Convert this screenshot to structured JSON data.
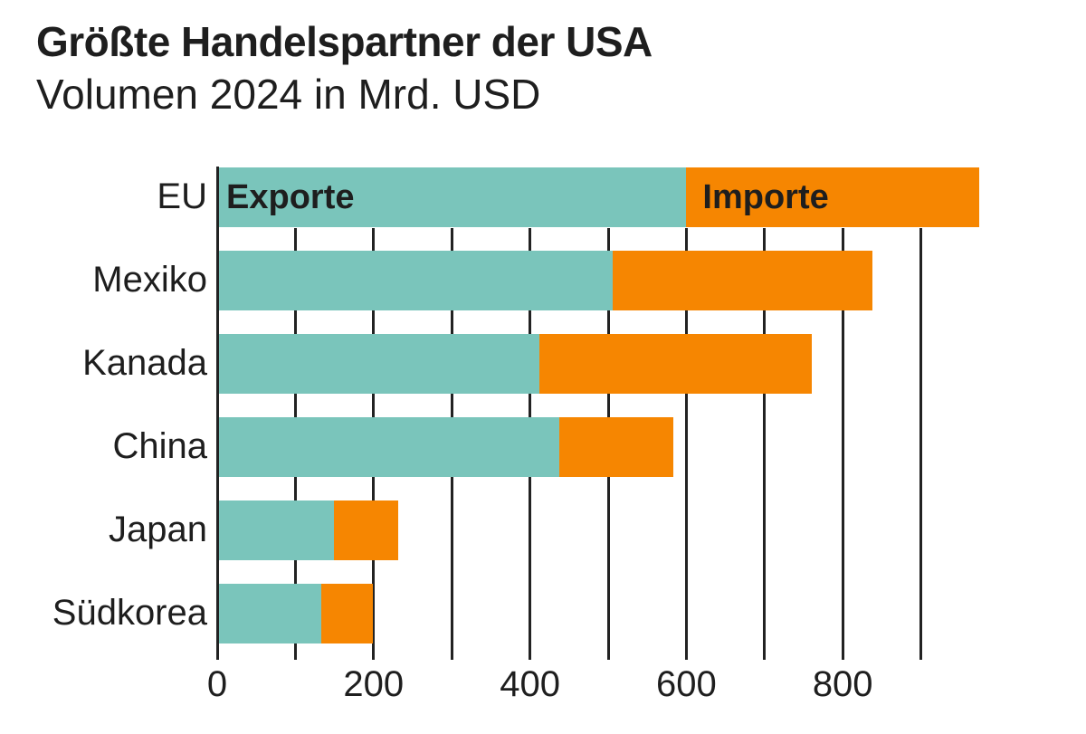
{
  "header": {
    "title": "Größte Handelspartner der USA",
    "subtitle": "Volumen 2024 in Mrd. USD"
  },
  "legend": {
    "exports_label": "Exporte",
    "imports_label": "Importe"
  },
  "axis": {
    "ticks": [
      "0",
      "200",
      "400",
      "600",
      "800"
    ]
  },
  "categories": [
    "EU",
    "Mexiko",
    "Kanada",
    "China",
    "Japan",
    "Südkorea"
  ],
  "colors": {
    "exports": "#7ac5bb",
    "imports": "#f68601",
    "grid": "#222222"
  },
  "chart_data": {
    "type": "bar",
    "orientation": "horizontal",
    "stacked": true,
    "title": "Größte Handelspartner der USA",
    "subtitle": "Volumen 2024 in Mrd. USD",
    "xlabel": "",
    "ylabel": "",
    "categories": [
      "EU",
      "Mexiko",
      "Kanada",
      "China",
      "Japan",
      "Südkorea"
    ],
    "series": [
      {
        "name": "Exporte",
        "color": "#7ac5bb",
        "values": [
          600,
          506,
          412,
          438,
          149,
          133
        ]
      },
      {
        "name": "Importe",
        "color": "#f68601",
        "values": [
          375,
          332,
          348,
          145,
          82,
          66
        ]
      }
    ],
    "xlim": [
      0,
      1000
    ],
    "xticks": [
      0,
      200,
      400,
      600,
      800
    ],
    "grid": true,
    "grid_step": 100,
    "legend_position": "inline in first bar"
  }
}
